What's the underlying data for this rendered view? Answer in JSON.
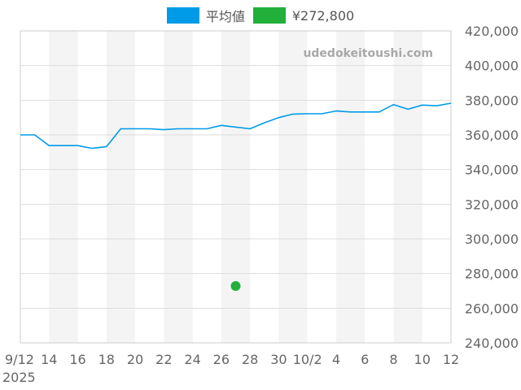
{
  "watermark": "udedokeitoushi.com",
  "legend": [
    {
      "label": "平均値",
      "color": "#009be8"
    },
    {
      "label": "¥272,800",
      "color": "#22b03b"
    }
  ],
  "chart_data": {
    "type": "line",
    "x_start_date": "2025-09-12",
    "x_end_date": "2025-10-12",
    "x_tick_labels": [
      "9/12",
      "14",
      "16",
      "18",
      "20",
      "22",
      "24",
      "26",
      "28",
      "30",
      "10/2",
      "4",
      "6",
      "8",
      "10",
      "12"
    ],
    "x_year_label": "2025",
    "ylim": [
      240000,
      420000
    ],
    "y_ticks": [
      240000,
      260000,
      280000,
      300000,
      320000,
      340000,
      360000,
      380000,
      400000,
      420000
    ],
    "y_tick_labels": [
      "240,000",
      "260,000",
      "280,000",
      "300,000",
      "320,000",
      "340,000",
      "360,000",
      "380,000",
      "400,000",
      "420,000"
    ],
    "y_axis_side": "right",
    "grid": true,
    "legend_position": "top",
    "series": [
      {
        "name": "平均値",
        "color": "#009be8",
        "x": [
          "2025-09-12",
          "2025-09-13",
          "2025-09-14",
          "2025-09-15",
          "2025-09-16",
          "2025-09-17",
          "2025-09-18",
          "2025-09-19",
          "2025-09-20",
          "2025-09-21",
          "2025-09-22",
          "2025-09-23",
          "2025-09-24",
          "2025-09-25",
          "2025-09-26",
          "2025-09-27",
          "2025-09-28",
          "2025-09-29",
          "2025-09-30",
          "2025-10-01",
          "2025-10-02",
          "2025-10-03",
          "2025-10-04",
          "2025-10-05",
          "2025-10-06",
          "2025-10-07",
          "2025-10-08",
          "2025-10-09",
          "2025-10-10",
          "2025-10-11",
          "2025-10-12"
        ],
        "values": [
          360000,
          360000,
          353800,
          353800,
          353800,
          352200,
          353200,
          363500,
          363500,
          363500,
          363000,
          363500,
          363500,
          363500,
          365500,
          364500,
          363500,
          367000,
          370000,
          372000,
          372200,
          372200,
          373800,
          373200,
          373200,
          373200,
          377500,
          374800,
          377200,
          376800,
          378300
        ]
      },
      {
        "name": "¥272,800",
        "color": "#22b03b",
        "type": "scatter",
        "x": [
          "2025-09-27"
        ],
        "values": [
          272800
        ]
      }
    ]
  }
}
